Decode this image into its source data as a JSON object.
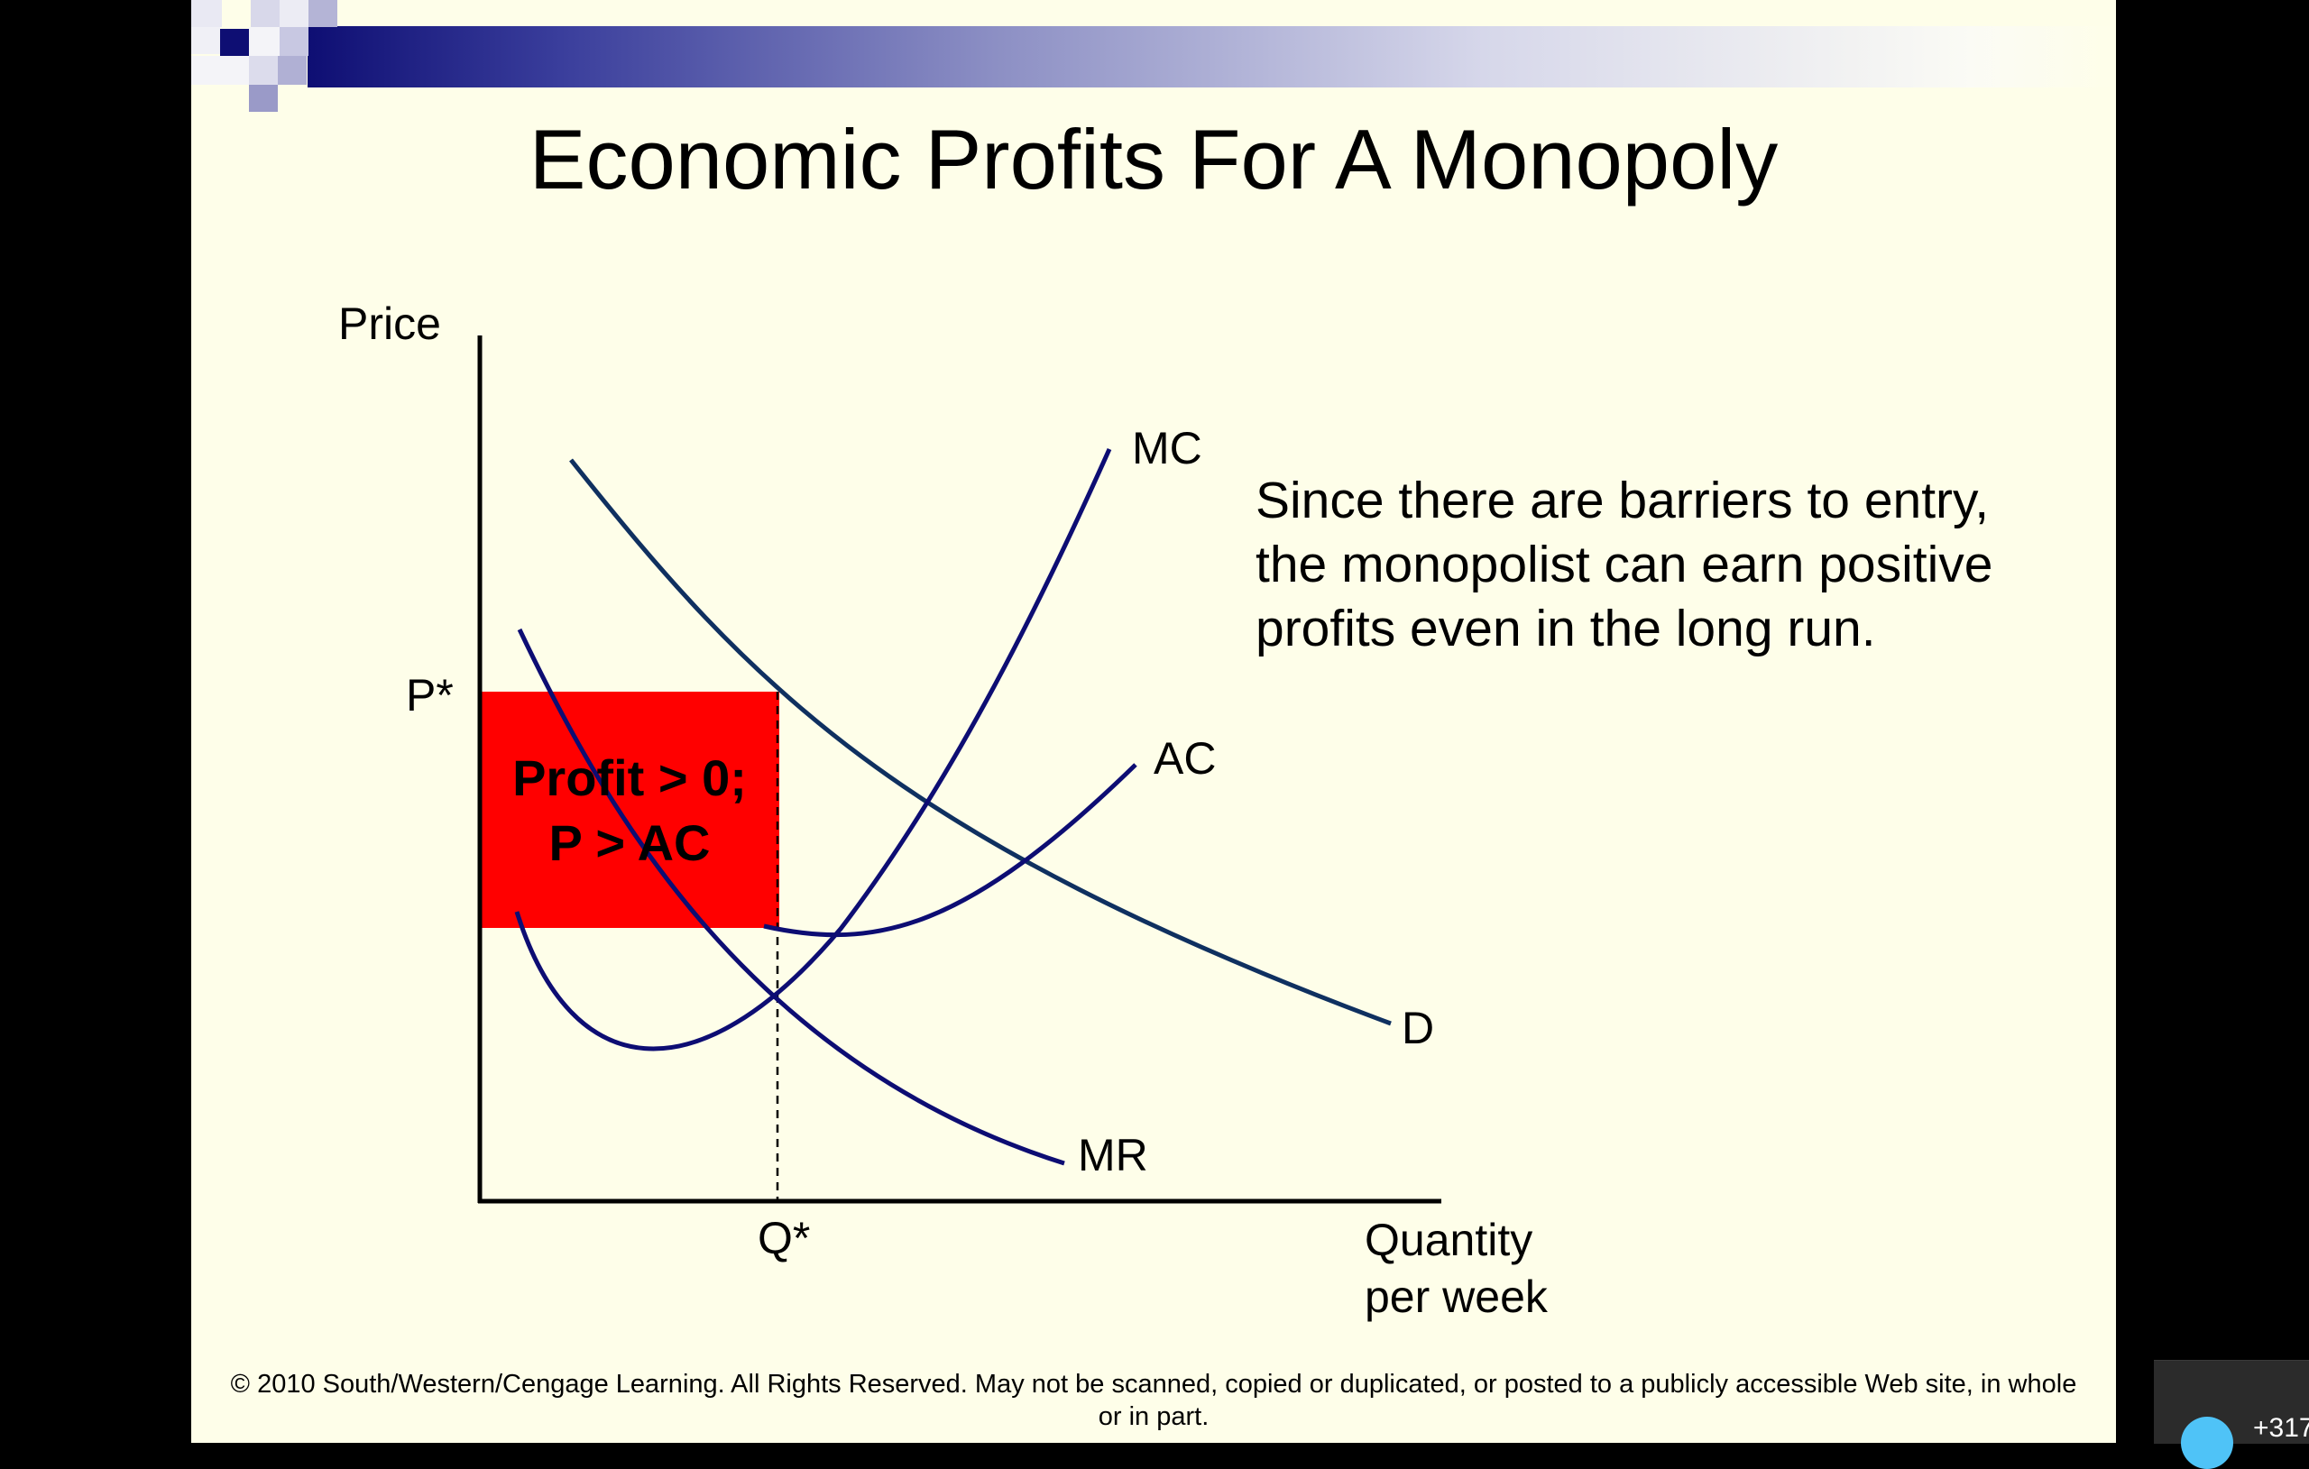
{
  "title": "Economic Profits For A Monopoly",
  "colors": {
    "slide_background": "#fefee9",
    "curve": "#0d0d73",
    "demand_curve": "#0f3060",
    "profit_area": "#ff0000",
    "banner_dark": "#0e0e73"
  },
  "diagram": {
    "axes": {
      "y_label": "Price",
      "x_label_line1": "Quantity",
      "x_label_line2": "per week"
    },
    "ticks": {
      "p_star": "P*",
      "q_star": "Q*"
    },
    "curves": {
      "mc": "MC",
      "ac": "AC",
      "d": "D",
      "mr": "MR"
    },
    "profit_box": {
      "line1": "Profit > 0;",
      "line2": "P > AC"
    }
  },
  "note": {
    "line1": "Since there are barriers to entry,",
    "line2": "the monopolist can earn positive",
    "line3": "profits even in the long run."
  },
  "footer": {
    "copyright_line1": "© 2010 South/Western/Cengage Learning. All Rights Reserved. May not be scanned, copied or duplicated, or posted to a publicly accessible Web site, in whole",
    "copyright_line2": "or in part."
  },
  "overlay": {
    "count_text": "+317"
  }
}
